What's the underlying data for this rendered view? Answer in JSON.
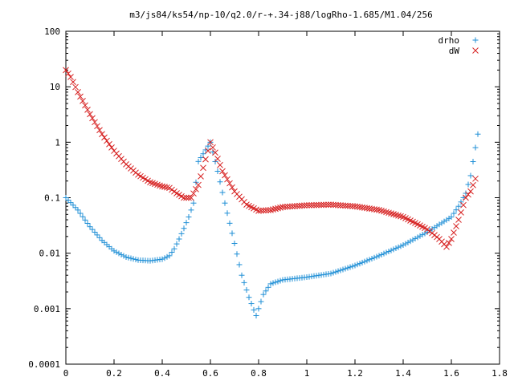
{
  "chart_data": {
    "type": "scatter",
    "title": "m3/js84/ks54/np-10/q2.0/r-+.34-j88/logRho-1.685/M1.04/256",
    "xlabel": "",
    "ylabel": "",
    "xlim": [
      0,
      1.8
    ],
    "ylim": [
      0.0001,
      100
    ],
    "yscale": "log",
    "grid": false,
    "legend_position": "top-right",
    "x_ticks": [
      "0",
      "0.2",
      "0.4",
      "0.6",
      "0.8",
      "1",
      "1.2",
      "1.4",
      "1.6",
      "1.8"
    ],
    "y_ticks": [
      "0.0001",
      "0.001",
      "0.01",
      "0.1",
      "1",
      "10",
      "100"
    ],
    "series": [
      {
        "name": "drho",
        "marker": "+",
        "color": "#1f8fd6",
        "x": [
          0.0,
          0.05,
          0.1,
          0.15,
          0.2,
          0.25,
          0.3,
          0.35,
          0.4,
          0.43,
          0.45,
          0.47,
          0.49,
          0.51,
          0.53,
          0.55,
          0.6,
          0.63,
          0.66,
          0.7,
          0.73,
          0.76,
          0.78,
          0.79,
          0.8,
          0.82,
          0.85,
          0.9,
          1.0,
          1.1,
          1.2,
          1.3,
          1.4,
          1.5,
          1.55,
          1.6,
          1.63,
          1.66,
          1.68,
          1.7,
          1.71
        ],
        "y": [
          0.1,
          0.06,
          0.03,
          0.017,
          0.011,
          0.0085,
          0.0075,
          0.0073,
          0.0078,
          0.009,
          0.012,
          0.018,
          0.028,
          0.045,
          0.08,
          0.45,
          1.0,
          0.3,
          0.08,
          0.015,
          0.004,
          0.0016,
          0.00095,
          0.00075,
          0.001,
          0.0018,
          0.0028,
          0.0033,
          0.0037,
          0.0043,
          0.006,
          0.009,
          0.014,
          0.024,
          0.033,
          0.045,
          0.07,
          0.12,
          0.25,
          0.8,
          1.4
        ]
      },
      {
        "name": "dW",
        "marker": "x",
        "color": "#d62020",
        "x": [
          0.0,
          0.02,
          0.05,
          0.1,
          0.15,
          0.2,
          0.25,
          0.3,
          0.35,
          0.4,
          0.43,
          0.46,
          0.49,
          0.52,
          0.55,
          0.6,
          0.62,
          0.65,
          0.7,
          0.75,
          0.8,
          0.85,
          0.9,
          1.0,
          1.1,
          1.2,
          1.3,
          1.4,
          1.45,
          1.5,
          1.55,
          1.58,
          1.6,
          1.63,
          1.66,
          1.68,
          1.7
        ],
        "y": [
          20,
          15,
          8,
          3.2,
          1.4,
          0.7,
          0.4,
          0.26,
          0.19,
          0.16,
          0.15,
          0.12,
          0.1,
          0.1,
          0.17,
          1.0,
          0.65,
          0.3,
          0.13,
          0.075,
          0.058,
          0.06,
          0.068,
          0.073,
          0.075,
          0.07,
          0.06,
          0.045,
          0.035,
          0.027,
          0.018,
          0.013,
          0.018,
          0.04,
          0.1,
          0.13,
          0.22
        ]
      }
    ]
  }
}
